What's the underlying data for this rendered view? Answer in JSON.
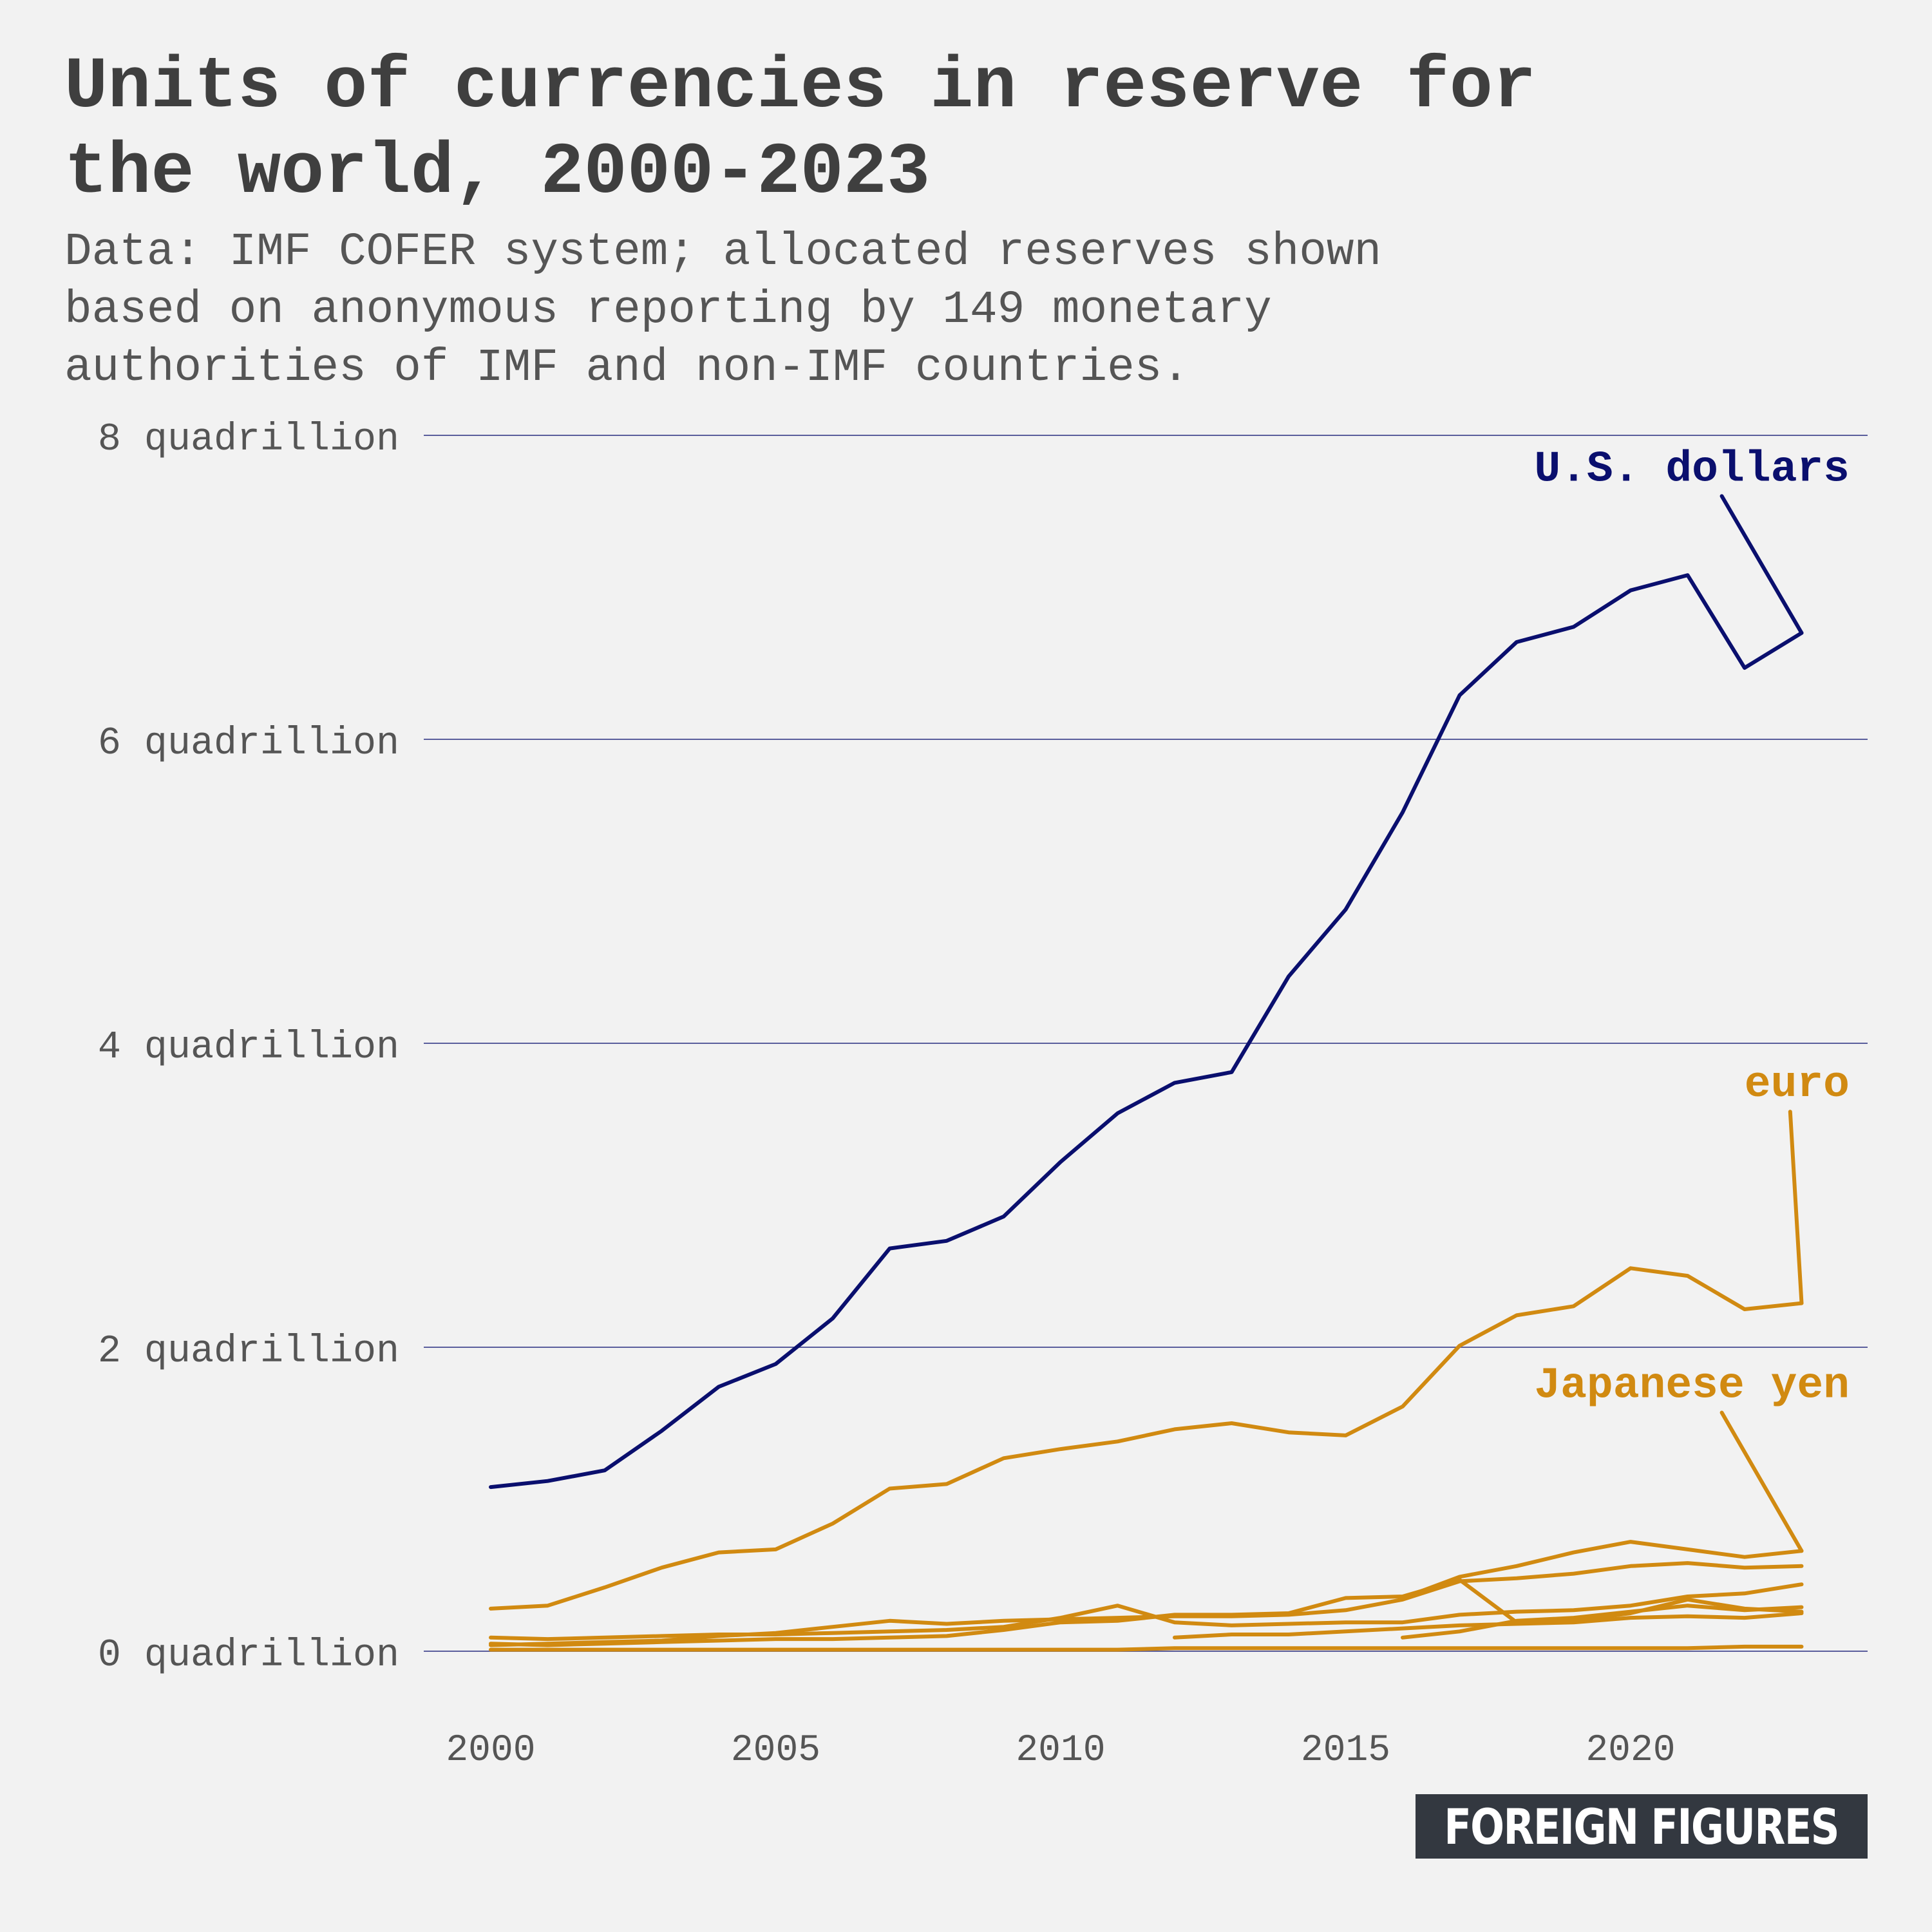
{
  "header": {
    "title_lines": [
      "Units of currencies in reserve for",
      "the world, 2000-2023"
    ],
    "subtitle_lines": [
      "Data: IMF COFER system; allocated reserves shown",
      "based on anonymous reporting by 149 monetary",
      "authorities of IMF and non-IMF countries."
    ]
  },
  "logo": {
    "text": "FOREIGN FIGURES"
  },
  "colors": {
    "usd": "#0a0f6e",
    "other": "#d18a11",
    "grid": "#5a5e9c",
    "text": "#555555",
    "title": "#3f3f3f",
    "background": "#f2f2f2"
  },
  "chart_data": {
    "type": "line",
    "title": "Units of currencies in reserve for the world, 2000-2023",
    "xlabel": "",
    "ylabel": "",
    "xlim": [
      1999,
      2024
    ],
    "ylim": [
      0,
      8
    ],
    "grid": "horizontal",
    "x_ticks": [
      2000,
      2005,
      2010,
      2015,
      2020
    ],
    "y_ticks": [
      {
        "value": 0,
        "label": "0 quadrillion"
      },
      {
        "value": 2,
        "label": "2 quadrillion"
      },
      {
        "value": 4,
        "label": "4 quadrillion"
      },
      {
        "value": 6,
        "label": "6 quadrillion"
      },
      {
        "value": 8,
        "label": "8 quadrillion"
      }
    ],
    "series": [
      {
        "name": "U.S. dollars",
        "color": "#0a0f6e",
        "label_anchor": [
          2021.6,
          7.6
        ],
        "x": [
          2000,
          2001,
          2002,
          2003,
          2004,
          2005,
          2006,
          2007,
          2008,
          2009,
          2010,
          2011,
          2012,
          2013,
          2014,
          2015,
          2016,
          2017,
          2018,
          2019,
          2020,
          2021,
          2022,
          2023
        ],
        "y": [
          1.08,
          1.12,
          1.19,
          1.45,
          1.74,
          1.89,
          2.19,
          2.65,
          2.7,
          2.86,
          3.22,
          3.54,
          3.74,
          3.81,
          4.44,
          4.88,
          5.52,
          6.29,
          6.64,
          6.74,
          6.98,
          7.08,
          6.47,
          6.7
        ]
      },
      {
        "name": "euro",
        "color": "#d18a11",
        "label_anchor": [
          2022.8,
          3.55
        ],
        "x": [
          2000,
          2001,
          2002,
          2003,
          2004,
          2005,
          2006,
          2007,
          2008,
          2009,
          2010,
          2011,
          2012,
          2013,
          2014,
          2015,
          2016,
          2017,
          2018,
          2019,
          2020,
          2021,
          2022,
          2023
        ],
        "y": [
          0.28,
          0.3,
          0.42,
          0.55,
          0.65,
          0.67,
          0.84,
          1.07,
          1.1,
          1.27,
          1.33,
          1.38,
          1.46,
          1.5,
          1.44,
          1.42,
          1.61,
          2.01,
          2.21,
          2.27,
          2.52,
          2.47,
          2.25,
          2.29
        ]
      },
      {
        "name": "Japanese yen",
        "color": "#d18a11",
        "label_anchor": [
          2021.6,
          1.57
        ],
        "x": [
          2016,
          2017,
          2018,
          2019,
          2020,
          2021,
          2022,
          2023
        ],
        "y": [
          0.35,
          0.49,
          0.56,
          0.65,
          0.72,
          0.67,
          0.62,
          0.66
        ]
      },
      {
        "name": "",
        "color": "#d18a11",
        "x": [
          2000,
          2001,
          2002,
          2003,
          2004,
          2005,
          2006,
          2007,
          2008,
          2009,
          2010,
          2011,
          2012,
          2013,
          2014,
          2015,
          2016,
          2017,
          2018,
          2019,
          2020,
          2021,
          2022,
          2023
        ],
        "y": [
          0.04,
          0.05,
          0.06,
          0.07,
          0.1,
          0.12,
          0.16,
          0.2,
          0.18,
          0.2,
          0.21,
          0.22,
          0.23,
          0.23,
          0.24,
          0.27,
          0.34,
          0.46,
          0.48,
          0.51,
          0.56,
          0.58,
          0.55,
          0.56
        ]
      },
      {
        "name": "",
        "color": "#d18a11",
        "x": [
          2000,
          2001,
          2002,
          2003,
          2004,
          2005,
          2006,
          2007,
          2008,
          2009,
          2010,
          2011,
          2012,
          2013,
          2014,
          2015,
          2016,
          2017,
          2018,
          2019,
          2020,
          2021,
          2022,
          2023
        ],
        "y": [
          0.09,
          0.08,
          0.09,
          0.1,
          0.11,
          0.11,
          0.12,
          0.13,
          0.14,
          0.16,
          0.22,
          0.3,
          0.19,
          0.17,
          0.18,
          0.19,
          0.19,
          0.24,
          0.26,
          0.27,
          0.3,
          0.36,
          0.38,
          0.44
        ]
      },
      {
        "name": "",
        "color": "#d18a11",
        "x": [
          2000,
          2001,
          2002,
          2003,
          2004,
          2005,
          2006,
          2007,
          2008,
          2009,
          2010,
          2011,
          2012,
          2013,
          2014,
          2015,
          2016,
          2017,
          2018,
          2019,
          2020,
          2021,
          2022,
          2023
        ],
        "y": [
          0.05,
          0.04,
          0.05,
          0.06,
          0.07,
          0.08,
          0.08,
          0.09,
          0.1,
          0.14,
          0.19,
          0.2,
          0.24,
          0.24,
          0.25,
          0.35,
          0.36,
          0.47,
          0.19,
          0.2,
          0.25,
          0.34,
          0.28,
          0.26
        ]
      },
      {
        "name": "",
        "color": "#d18a11",
        "x": [
          2012,
          2013,
          2014,
          2015,
          2016,
          2017,
          2018,
          2019,
          2020,
          2021,
          2022,
          2023
        ],
        "y": [
          0.09,
          0.11,
          0.11,
          0.13,
          0.15,
          0.17,
          0.18,
          0.19,
          0.22,
          0.23,
          0.22,
          0.25
        ]
      },
      {
        "name": "",
        "color": "#d18a11",
        "x": [
          2016,
          2017,
          2018,
          2019,
          2020,
          2021,
          2022,
          2023
        ],
        "y": [
          0.09,
          0.13,
          0.2,
          0.22,
          0.26,
          0.3,
          0.27,
          0.29
        ]
      },
      {
        "name": "",
        "color": "#d18a11",
        "x": [
          2000,
          2001,
          2002,
          2003,
          2004,
          2005,
          2006,
          2007,
          2008,
          2009,
          2010,
          2011,
          2012,
          2013,
          2014,
          2015,
          2016,
          2017,
          2018,
          2019,
          2020,
          2021,
          2022,
          2023
        ],
        "y": [
          0.01,
          0.01,
          0.01,
          0.01,
          0.01,
          0.01,
          0.01,
          0.01,
          0.01,
          0.01,
          0.01,
          0.01,
          0.02,
          0.02,
          0.02,
          0.02,
          0.02,
          0.02,
          0.02,
          0.02,
          0.02,
          0.02,
          0.03,
          0.03
        ]
      }
    ]
  }
}
